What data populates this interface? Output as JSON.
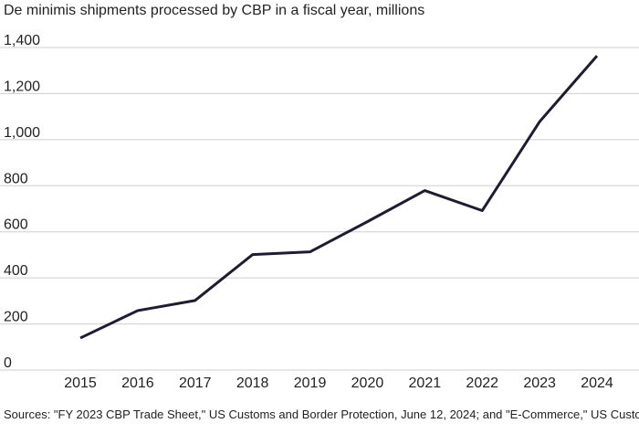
{
  "chart_data": {
    "type": "line",
    "title": "De minimis shipments processed by CBP in a fiscal year, millions",
    "categories": [
      "2015",
      "2016",
      "2017",
      "2018",
      "2019",
      "2020",
      "2021",
      "2022",
      "2023",
      "2024"
    ],
    "series": [
      {
        "name": "De minimis shipments",
        "color": "#1e1c30",
        "values": [
          139,
          258,
          302,
          501,
          513,
          644,
          779,
          692,
          1078,
          1364
        ]
      }
    ],
    "ylim": [
      0,
      1400
    ],
    "yticks": [
      0,
      200,
      400,
      600,
      800,
      {
        "value": 1000,
        "label": "1,000"
      },
      {
        "value": 1200,
        "label": "1,200"
      },
      {
        "value": 1400,
        "label": "1,400"
      }
    ],
    "grid": true,
    "source": "Sources: \"FY 2023 CBP Trade Sheet,\" US Customs and Border Protection, June 12, 2024; and \"E-Commerce,\" US Customs and Border Protection."
  }
}
